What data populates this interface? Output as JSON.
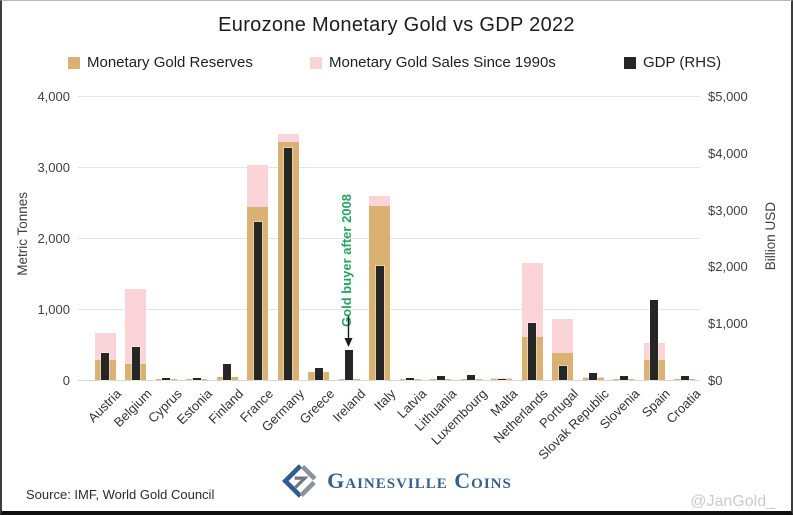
{
  "title": "Eurozone Monetary Gold vs GDP 2022",
  "legend": [
    {
      "label": "Monetary Gold Reserves",
      "color": "#d9b172"
    },
    {
      "label": "Monetary Gold Sales Since 1990s",
      "color": "#fbd4d7"
    },
    {
      "label": "GDP (RHS)",
      "color": "#262626"
    }
  ],
  "annotation": {
    "text": "Gold buyer after 2008",
    "color": "#27a463",
    "target_country": "Ireland"
  },
  "footer": {
    "source": "Source: IMF, World Gold Council",
    "logo_text": "Gainesville Coins",
    "watermark": "@JanGold_"
  },
  "colors": {
    "reserves": "#d9b172",
    "sales": "#fbd4d7",
    "gdp": "#262626",
    "grid": "#e4e4e4",
    "annotation_green": "#27a463",
    "logo_blue": "#2f5d90",
    "logo_gray": "#8c939c"
  },
  "chart_data": {
    "type": "bar",
    "title": "Eurozone Monetary Gold vs GDP 2022",
    "ylabel_left": "Metric Tonnes",
    "ylabel_right": "Billion USD",
    "ylim_left": [
      0,
      4000
    ],
    "ylim_right": [
      0,
      5000
    ],
    "yticks_left": [
      "0",
      "1,000",
      "2,000",
      "3,000",
      "4,000"
    ],
    "yticks_right": [
      "$0",
      "$1,000",
      "$2,000",
      "$3,000",
      "$4,000",
      "$5,000"
    ],
    "grid": true,
    "legend_position": "top",
    "categories": [
      "Austria",
      "Belgium",
      "Cyprus",
      "Estonia",
      "Finland",
      "France",
      "Germany",
      "Greece",
      "Ireland",
      "Italy",
      "Latvia",
      "Lithuania",
      "Luxembourg",
      "Malta",
      "Netherlands",
      "Portugal",
      "Slovak Republic",
      "Slovenia",
      "Spain",
      "Croatia"
    ],
    "series": [
      {
        "name": "Monetary Gold Reserves",
        "axis": "left",
        "unit": "metric tonnes",
        "values": [
          280,
          227,
          14,
          0.2,
          49,
          2437,
          3355,
          114,
          12,
          2452,
          7,
          6,
          2,
          0.3,
          612,
          383,
          32,
          3,
          282,
          2
        ]
      },
      {
        "name": "Monetary Gold Sales Since 1990s",
        "axis": "left",
        "unit": "metric tonnes (total holdings before sales, drawn behind reserves)",
        "values": [
          657,
          1285,
          0,
          0,
          0,
          3025,
          3470,
          0,
          0,
          2590,
          0,
          0,
          0,
          28,
          1655,
          855,
          45,
          0,
          525,
          0
        ]
      },
      {
        "name": "GDP (RHS)",
        "axis": "right",
        "unit": "billion USD",
        "values": [
          471,
          578,
          29,
          38,
          281,
          2780,
          4080,
          217,
          533,
          2010,
          41,
          67,
          82,
          18,
          1010,
          255,
          115,
          62,
          1415,
          71
        ]
      }
    ]
  }
}
